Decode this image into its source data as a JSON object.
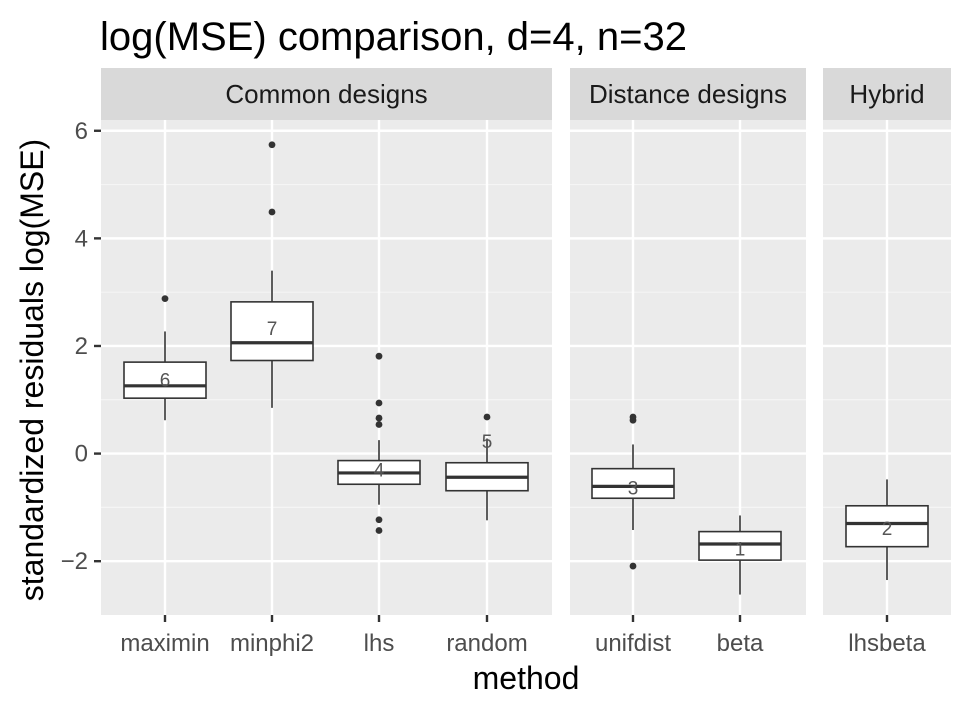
{
  "chart_data": {
    "type": "boxplot",
    "title": "log(MSE) comparison, d=4, n=32",
    "xlabel": "method",
    "ylabel": "standardized residuals log(MSE)",
    "ylim": [
      -3.0,
      6.2
    ],
    "yticks": [
      -2,
      0,
      2,
      4,
      6
    ],
    "yticklabels": [
      "−2",
      "0",
      "2",
      "4",
      "6"
    ],
    "panels": [
      {
        "strip": "Common designs",
        "boxes": [
          {
            "method": "maximin",
            "label": "6",
            "q1": 1.03,
            "median": 1.26,
            "q3": 1.7,
            "whisker_low": 0.62,
            "whisker_high": 2.27,
            "outliers": [
              2.88
            ],
            "label_y": 1.38
          },
          {
            "method": "minphi2",
            "label": "7",
            "q1": 1.73,
            "median": 2.06,
            "q3": 2.82,
            "whisker_low": 0.85,
            "whisker_high": 3.4,
            "outliers": [
              4.49,
              5.74
            ],
            "label_y": 2.33
          },
          {
            "method": "lhs",
            "label": "4",
            "q1": -0.57,
            "median": -0.36,
            "q3": -0.13,
            "whisker_low": -0.95,
            "whisker_high": 0.25,
            "outliers": [
              0.54,
              0.66,
              0.94,
              1.81,
              -1.23,
              -1.43
            ],
            "label_y": -0.3
          },
          {
            "method": "random",
            "label": "5",
            "q1": -0.69,
            "median": -0.44,
            "q3": -0.17,
            "whisker_low": -1.24,
            "whisker_high": 0.28,
            "outliers": [
              0.68
            ],
            "label_y": 0.23
          }
        ]
      },
      {
        "strip": "Distance designs",
        "boxes": [
          {
            "method": "unifdist",
            "label": "3",
            "q1": -0.83,
            "median": -0.61,
            "q3": -0.28,
            "whisker_low": -1.42,
            "whisker_high": 0.17,
            "outliers": [
              0.62,
              0.68,
              -2.09
            ],
            "label_y": -0.63
          },
          {
            "method": "beta",
            "label": "1",
            "q1": -1.98,
            "median": -1.68,
            "q3": -1.45,
            "whisker_low": -2.62,
            "whisker_high": -1.15,
            "outliers": [],
            "label_y": -1.76
          }
        ]
      },
      {
        "strip": "Hybrid",
        "boxes": [
          {
            "method": "lhsbeta",
            "label": "2",
            "q1": -1.73,
            "median": -1.3,
            "q3": -0.97,
            "whisker_low": -2.35,
            "whisker_high": -0.48,
            "outliers": [],
            "label_y": -1.38
          }
        ]
      }
    ]
  },
  "colors": {
    "panel_bg": "#ebebeb",
    "strip_bg": "#d9d9d9",
    "grid_major": "#ffffff",
    "grid_minor": "#f5f5f5",
    "box_line": "#333333",
    "box_fill": "#ffffff",
    "label_color": "#555555"
  }
}
